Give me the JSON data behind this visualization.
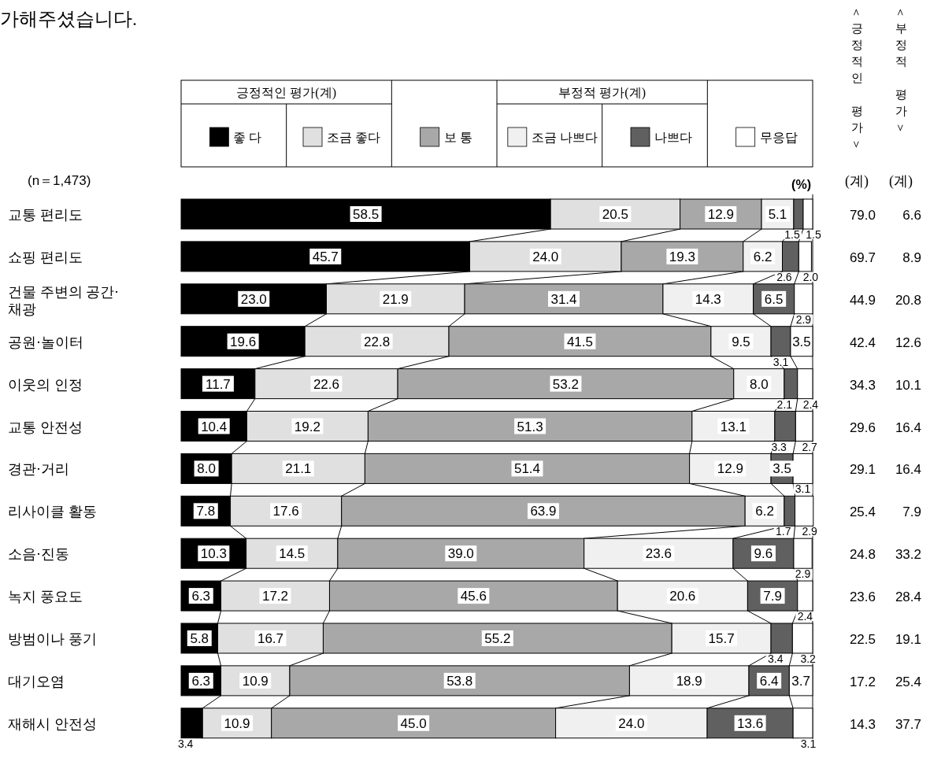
{
  "chart_data": {
    "type": "bar",
    "orientation": "horizontal",
    "stacked": true,
    "title": "가해주셨습니다.",
    "categories": [
      "교통 편리도",
      "쇼핑 편리도",
      "건물 주변의 공간·채광",
      "공원·놀이터",
      "이웃의 인정",
      "교통 안전성",
      "경관·거리",
      "리사이클 활동",
      "소음·진동",
      "녹지 풍요도",
      "방범이나 풍기",
      "대기오염",
      "재해시 안전성"
    ],
    "series": [
      {
        "name": "좋 다",
        "color": "#000000",
        "values": [
          58.5,
          45.7,
          23.0,
          19.6,
          11.7,
          10.4,
          8.0,
          7.8,
          10.3,
          6.3,
          5.8,
          6.3,
          3.4
        ],
        "value_labels": [
          "58.5",
          "45.7",
          "23.0",
          "19.6",
          "11.7",
          "10.4",
          "8.0",
          "7.8",
          "10.3",
          "6.3",
          "5.8",
          "6.3",
          "3.4"
        ]
      },
      {
        "name": "조금 좋다",
        "color": "#e0e0e0",
        "values": [
          20.5,
          24.0,
          21.9,
          22.8,
          22.6,
          19.2,
          21.1,
          17.6,
          14.5,
          17.2,
          16.7,
          10.9,
          10.9
        ],
        "value_labels": [
          "20.5",
          "24.0",
          "21.9",
          "22.8",
          "22.6",
          "19.2",
          "21.1",
          "17.6",
          "14.5",
          "17.2",
          "16.7",
          "10.9",
          "10.9"
        ]
      },
      {
        "name": "보 통",
        "color": "#a8a8a8",
        "values": [
          12.9,
          19.3,
          31.4,
          41.5,
          53.2,
          51.3,
          51.4,
          63.9,
          39.0,
          45.6,
          55.2,
          53.8,
          45.0
        ],
        "value_labels": [
          "12.9",
          "19.3",
          "31.4",
          "41.5",
          "53.2",
          "51.3",
          "51.4",
          "63.9",
          "39.0",
          "45.6",
          "55.2",
          "53.8",
          "45.0"
        ]
      },
      {
        "name": "조금 나쁘다",
        "color": "#f0f0f0",
        "values": [
          5.1,
          6.2,
          14.3,
          9.5,
          8.0,
          13.1,
          12.9,
          6.2,
          23.6,
          20.6,
          15.7,
          18.9,
          24.0
        ],
        "value_labels": [
          "5.1",
          "6.2",
          "14.3",
          "9.5",
          "8.0",
          "13.1",
          "12.9",
          "6.2",
          "23.6",
          "20.6",
          "15.7",
          "18.9",
          "24.0"
        ]
      },
      {
        "name": "나쁘다",
        "color": "#606060",
        "values": [
          1.5,
          2.6,
          6.5,
          3.1,
          2.1,
          3.3,
          3.5,
          1.7,
          9.6,
          7.9,
          3.4,
          6.4,
          13.6
        ],
        "value_labels": [
          "1.5",
          "2.6",
          "6.5",
          "3.1",
          "2.1",
          "3.3",
          "3.5",
          "1.7",
          "9.6",
          "7.9",
          "3.4",
          "6.4",
          "13.6"
        ]
      },
      {
        "name": "무응답",
        "color": "#ffffff",
        "values": [
          1.5,
          2.0,
          2.9,
          3.5,
          2.4,
          2.7,
          3.1,
          2.9,
          2.9,
          2.4,
          3.2,
          3.7,
          3.1
        ],
        "value_labels": [
          "1.5",
          "2.0",
          "2.9",
          "3.5",
          "2.4",
          "2.7",
          "3.1",
          "2.9",
          "2.9",
          "2.4",
          "3.2",
          "3.7",
          "3.1"
        ]
      }
    ],
    "xlim": [
      0,
      100
    ],
    "tick_labels": "y",
    "legend": "top",
    "annotations": [
      "긍정적인 평가(계)",
      "부정적 평가(계)",
      "(n＝1,473)",
      "(%)",
      "＜긍정적인 평가＞",
      "＜부정적 평가＞",
      "(계)",
      "(계)",
      "79.0",
      "6.6",
      "69.7",
      "8.9",
      "44.9",
      "20.8",
      "42.4",
      "12.6",
      "34.3",
      "10.1",
      "29.6",
      "16.4",
      "29.1",
      "16.4",
      "25.4",
      "7.9",
      "24.8",
      "33.2",
      "23.6",
      "28.4",
      "22.5",
      "19.1",
      "17.2",
      "25.4",
      "14.3",
      "37.7"
    ]
  }
}
